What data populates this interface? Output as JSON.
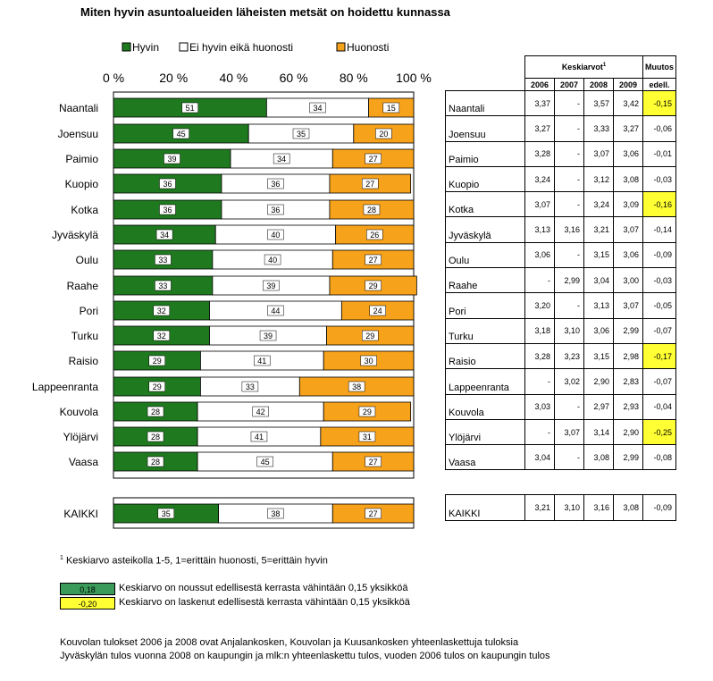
{
  "chart_data": {
    "type": "bar",
    "orientation": "horizontal",
    "stacked": true,
    "percent": true,
    "title": "Miten hyvin asuntoalueiden läheisten metsät on hoidettu kunnassa",
    "legend_position": "top",
    "xlim": [
      0,
      100
    ],
    "x_ticks": [
      "0 %",
      "20 %",
      "40 %",
      "60 %",
      "80 %",
      "100 %"
    ],
    "categories": [
      "Naantali",
      "Joensuu",
      "Paimio",
      "Kuopio",
      "Kotka",
      "Jyväskylä",
      "Oulu",
      "Raahe",
      "Pori",
      "Turku",
      "Raisio",
      "Lappeenranta",
      "Kouvola",
      "Ylöjärvi",
      "Vaasa",
      "KAIKKI"
    ],
    "series": [
      {
        "name": "Hyvin",
        "color": "#1f7a1f",
        "values": [
          51,
          45,
          39,
          36,
          36,
          34,
          33,
          33,
          32,
          32,
          29,
          29,
          28,
          28,
          28,
          35
        ]
      },
      {
        "name": "Ei hyvin eikä huonosti",
        "color": "#ffffff",
        "values": [
          34,
          35,
          34,
          36,
          36,
          40,
          40,
          39,
          44,
          39,
          41,
          33,
          42,
          41,
          45,
          38
        ]
      },
      {
        "name": "Huonosti",
        "color": "#f7a21b",
        "values": [
          15,
          20,
          27,
          27,
          28,
          26,
          27,
          29,
          24,
          29,
          30,
          38,
          29,
          31,
          27,
          27
        ]
      }
    ]
  },
  "table": {
    "header_keskiarvot": "Keskiarvot",
    "header_sup": "1",
    "header_muutos": "Muutos",
    "header_edell": "edell.",
    "years": [
      "2006",
      "2007",
      "2008",
      "2009"
    ],
    "rows": [
      {
        "city": "Naantali",
        "vals": [
          "3,37",
          "-",
          "3,57",
          "3,42"
        ],
        "change": "-0,15",
        "hl": true
      },
      {
        "city": "Joensuu",
        "vals": [
          "3,27",
          "-",
          "3,33",
          "3,27"
        ],
        "change": "-0,06",
        "hl": false
      },
      {
        "city": "Paimio",
        "vals": [
          "3,28",
          "-",
          "3,07",
          "3,06"
        ],
        "change": "-0,01",
        "hl": false
      },
      {
        "city": "Kuopio",
        "vals": [
          "3,24",
          "-",
          "3,12",
          "3,08"
        ],
        "change": "-0,03",
        "hl": false
      },
      {
        "city": "Kotka",
        "vals": [
          "3,07",
          "-",
          "3,24",
          "3,09"
        ],
        "change": "-0,16",
        "hl": true
      },
      {
        "city": "Jyväskylä",
        "vals": [
          "3,13",
          "3,16",
          "3,21",
          "3,07"
        ],
        "change": "-0,14",
        "hl": false
      },
      {
        "city": "Oulu",
        "vals": [
          "3,06",
          "-",
          "3,15",
          "3,06"
        ],
        "change": "-0,09",
        "hl": false
      },
      {
        "city": "Raahe",
        "vals": [
          "-",
          "2,99",
          "3,04",
          "3,00"
        ],
        "change": "-0,03",
        "hl": false
      },
      {
        "city": "Pori",
        "vals": [
          "3,20",
          "-",
          "3,13",
          "3,07"
        ],
        "change": "-0,05",
        "hl": false
      },
      {
        "city": "Turku",
        "vals": [
          "3,18",
          "3,10",
          "3,06",
          "2,99"
        ],
        "change": "-0,07",
        "hl": false
      },
      {
        "city": "Raisio",
        "vals": [
          "3,28",
          "3,23",
          "3,15",
          "2,98"
        ],
        "change": "-0,17",
        "hl": true
      },
      {
        "city": "Lappeenranta",
        "vals": [
          "-",
          "3,02",
          "2,90",
          "2,83"
        ],
        "change": "-0,07",
        "hl": false
      },
      {
        "city": "Kouvola",
        "vals": [
          "3,03",
          "-",
          "2,97",
          "2,93"
        ],
        "change": "-0,04",
        "hl": false
      },
      {
        "city": "Ylöjärvi",
        "vals": [
          "-",
          "3,07",
          "3,14",
          "2,90"
        ],
        "change": "-0,25",
        "hl": true
      },
      {
        "city": "Vaasa",
        "vals": [
          "3,04",
          "-",
          "3,08",
          "2,99"
        ],
        "change": "-0,08",
        "hl": false
      }
    ],
    "total": {
      "city": "KAIKKI",
      "vals": [
        "3,21",
        "3,10",
        "3,16",
        "3,08"
      ],
      "change": "-0,09"
    }
  },
  "footnote": {
    "sup": "1",
    "text": "Keskiarvo asteikolla 1-5, 1=erittäin huonosti, 5=erittäin hyvin"
  },
  "legend_boxes": [
    {
      "value": "0,18",
      "color": "#3a9a5a",
      "text": "Keskiarvo on noussut edellisestä kerrasta vähintään 0,15 yksikköä"
    },
    {
      "value": "-0,20",
      "color": "#ffff33",
      "text": "Keskiarvo on laskenut edellisestä kerrasta vähintään 0,15 yksikköä"
    }
  ],
  "notes": [
    "Kouvolan tulokset 2006 ja 2008 ovat Anjalankosken, Kouvolan ja Kuusankosken yhteenlaskettuja tuloksia",
    "Jyväskylän tulos vuonna 2008 on kaupungin ja mlk:n yhteenlaskettu  tulos, vuoden 2006 tulos on  kaupungin tulos"
  ]
}
